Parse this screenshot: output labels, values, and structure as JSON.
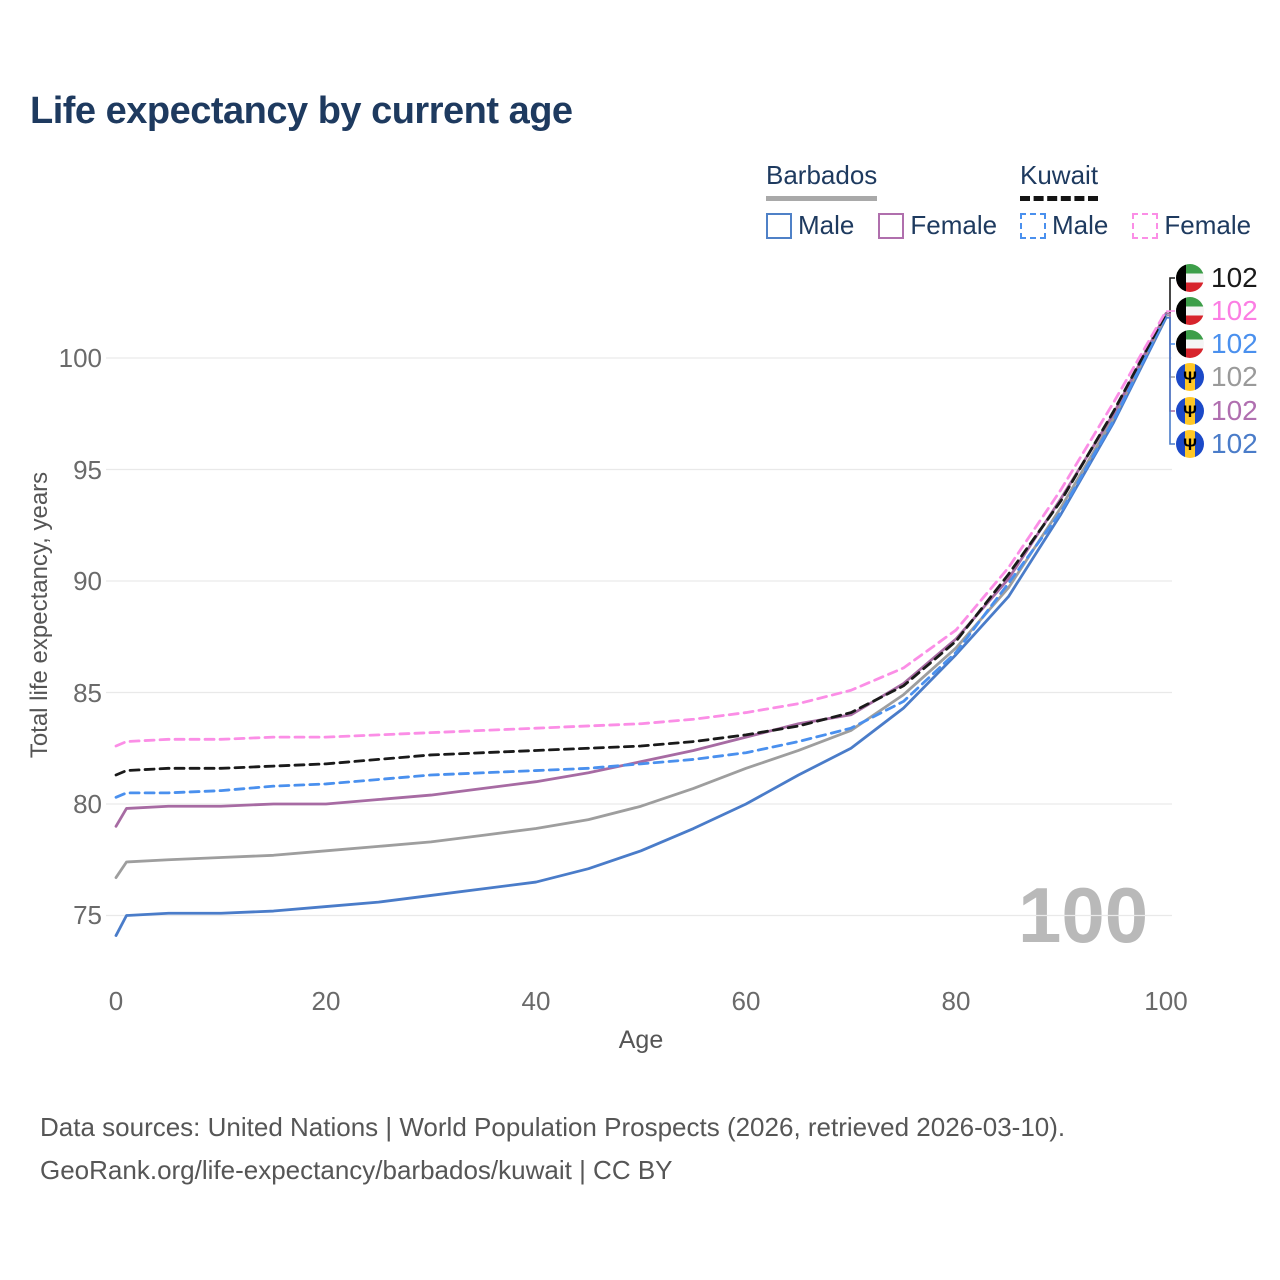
{
  "header": {
    "title": "Life expectancy by current age"
  },
  "legend": {
    "groups": [
      {
        "country": "Barbados",
        "line_style": "solid",
        "items": [
          {
            "label": "Male"
          },
          {
            "label": "Female"
          }
        ]
      },
      {
        "country": "Kuwait",
        "line_style": "dashed",
        "items": [
          {
            "label": "Male"
          },
          {
            "label": "Female"
          }
        ]
      }
    ]
  },
  "watermark_current_age": "100",
  "end_labels": [
    {
      "flag": "kuwait",
      "value": "102",
      "color": "#1a1a1a"
    },
    {
      "flag": "kuwait",
      "value": "102",
      "color": "#fb7ee3"
    },
    {
      "flag": "kuwait",
      "value": "102",
      "color": "#4a90ee"
    },
    {
      "flag": "barbados",
      "value": "102",
      "color": "#9a9a9a"
    },
    {
      "flag": "barbados",
      "value": "102",
      "color": "#b06fb0"
    },
    {
      "flag": "barbados",
      "value": "102",
      "color": "#4a7cc9"
    }
  ],
  "footer": {
    "line1": "Data sources: United Nations | World Population Prospects (2026, retrieved 2026-03-10).",
    "line2": "GeoRank.org/life-expectancy/barbados/kuwait | CC BY"
  },
  "chart_data": {
    "type": "line",
    "title": "Life expectancy by current age",
    "xlabel": "Age",
    "ylabel": "Total life expectancy, years",
    "xlim": [
      0,
      100
    ],
    "ylim": [
      73,
      103
    ],
    "xticks": [
      0,
      20,
      40,
      60,
      80,
      100
    ],
    "yticks": [
      75,
      80,
      85,
      90,
      95,
      100
    ],
    "grid": "horizontal",
    "legend_position": "top-right",
    "x": [
      0,
      1,
      5,
      10,
      15,
      20,
      25,
      30,
      35,
      40,
      45,
      50,
      55,
      60,
      65,
      70,
      75,
      80,
      85,
      90,
      95,
      100
    ],
    "series": [
      {
        "name": "Kuwait",
        "country": "Kuwait",
        "sex": "both",
        "line": "dashed",
        "color": "#1a1a1a",
        "values": [
          81.3,
          81.5,
          81.6,
          81.6,
          81.7,
          81.8,
          82.0,
          82.2,
          82.3,
          82.4,
          82.5,
          82.6,
          82.8,
          83.1,
          83.5,
          84.1,
          85.3,
          87.3,
          90.3,
          93.6,
          97.6,
          102.0
        ]
      },
      {
        "name": "Kuwait Female",
        "country": "Kuwait",
        "sex": "female",
        "line": "dashed",
        "color": "#fb8ee6",
        "values": [
          82.6,
          82.8,
          82.9,
          82.9,
          83.0,
          83.0,
          83.1,
          83.2,
          83.3,
          83.4,
          83.5,
          83.6,
          83.8,
          84.1,
          84.5,
          85.1,
          86.1,
          87.8,
          90.6,
          94.1,
          98.0,
          102.1
        ]
      },
      {
        "name": "Kuwait Male",
        "country": "Kuwait",
        "sex": "male",
        "line": "dashed",
        "color": "#4a90ee",
        "values": [
          80.3,
          80.5,
          80.5,
          80.6,
          80.8,
          80.9,
          81.1,
          81.3,
          81.4,
          81.5,
          81.6,
          81.8,
          82.0,
          82.3,
          82.8,
          83.4,
          84.6,
          86.8,
          89.9,
          93.1,
          97.2,
          101.9
        ]
      },
      {
        "name": "Barbados",
        "country": "Barbados",
        "sex": "both",
        "line": "solid",
        "color": "#9e9e9e",
        "values": [
          76.7,
          77.4,
          77.5,
          77.6,
          77.7,
          77.9,
          78.1,
          78.3,
          78.6,
          78.9,
          79.3,
          79.9,
          80.7,
          81.6,
          82.4,
          83.3,
          84.9,
          87.0,
          89.7,
          93.3,
          97.3,
          101.9
        ]
      },
      {
        "name": "Barbados Female",
        "country": "Barbados",
        "sex": "female",
        "line": "solid",
        "color": "#a76ba3",
        "values": [
          79.0,
          79.8,
          79.9,
          79.9,
          80.0,
          80.0,
          80.2,
          80.4,
          80.7,
          81.0,
          81.4,
          81.9,
          82.4,
          83.0,
          83.6,
          84.0,
          85.4,
          87.4,
          90.1,
          93.7,
          97.5,
          102.0
        ]
      },
      {
        "name": "Barbados Male",
        "country": "Barbados",
        "sex": "male",
        "line": "solid",
        "color": "#4a7cc9",
        "values": [
          74.1,
          75.0,
          75.1,
          75.1,
          75.2,
          75.4,
          75.6,
          75.9,
          76.2,
          76.5,
          77.1,
          77.9,
          78.9,
          80.0,
          81.3,
          82.5,
          84.3,
          86.7,
          89.3,
          93.0,
          97.1,
          101.8
        ]
      }
    ]
  }
}
